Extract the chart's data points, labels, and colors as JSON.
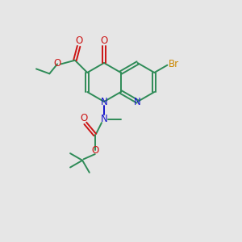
{
  "bg_color": "#e6e6e6",
  "bond_color": "#2e8b57",
  "n_color": "#1414cc",
  "o_color": "#cc1414",
  "br_color": "#cc8800",
  "figsize": [
    3.0,
    3.0
  ],
  "dpi": 100,
  "xlim": [
    0,
    10
  ],
  "ylim": [
    0,
    10
  ],
  "lw": 1.4,
  "fs": 8.5
}
